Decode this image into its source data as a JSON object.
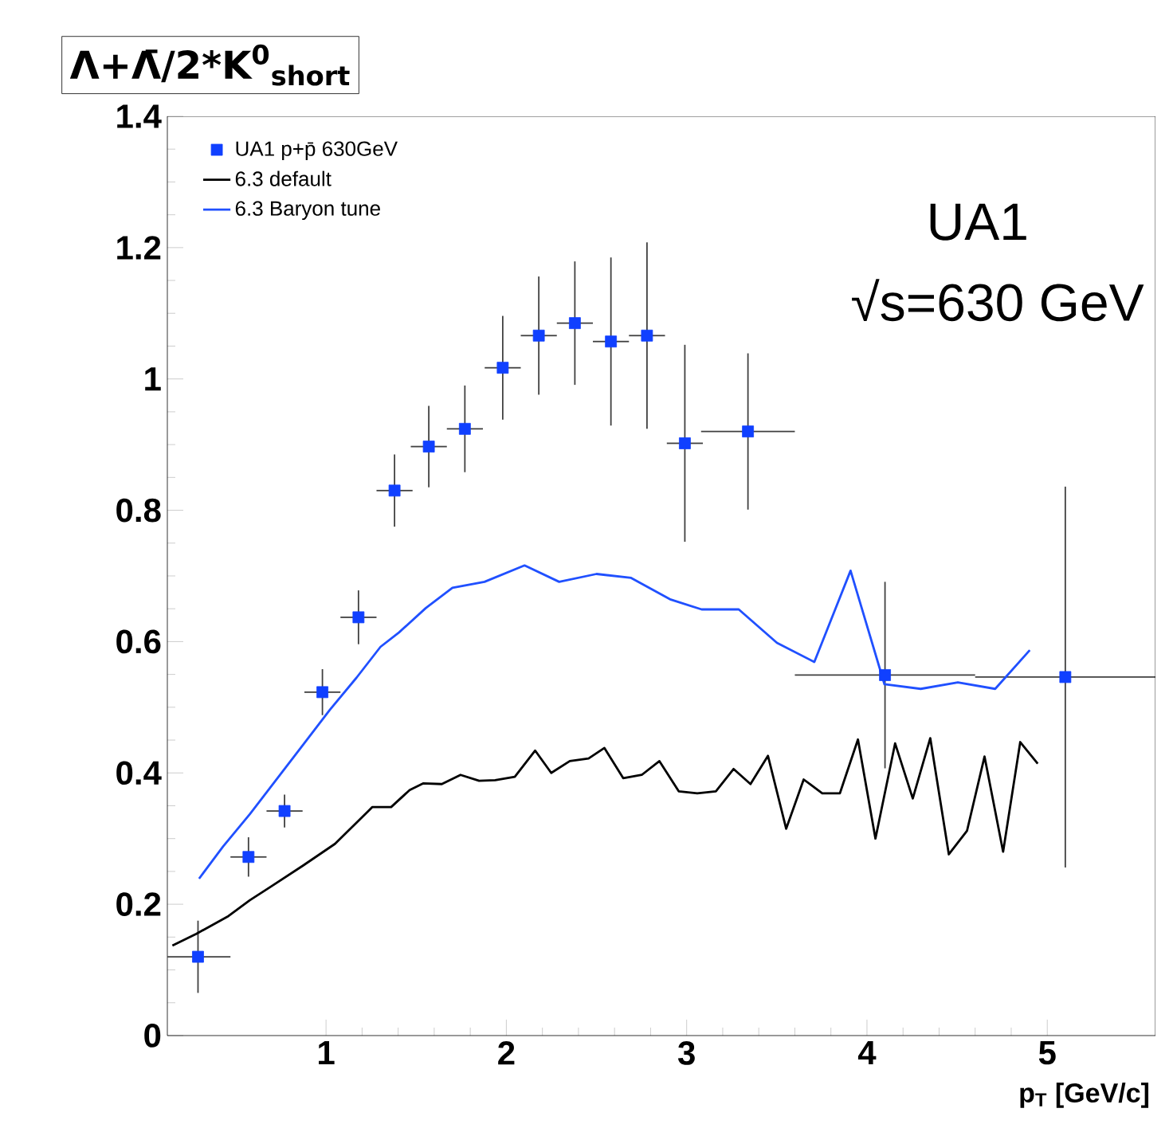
{
  "chart_data": {
    "type": "line",
    "ylabel": "Λ+Λ̄/2*K$^{0}$$_{short}$",
    "xlabel": "p$_{T}$ [GeV/c]",
    "annotations": [
      "UA1",
      "√s=630 GeV"
    ],
    "xlim": [
      0.12,
      5.6
    ],
    "xticks": [
      1,
      2,
      3,
      4,
      5
    ],
    "ylim": [
      0,
      1.4
    ],
    "yticks": [
      0,
      0.2,
      0.4,
      0.6,
      0.8,
      1,
      1.2,
      1.4
    ],
    "grid": false,
    "legend": "top left",
    "series": [
      {
        "name": "UA1 p+p̄ 630GeV",
        "type": "scatter",
        "marker": "square",
        "color": "#1040ff",
        "x": [
          0.29,
          0.57,
          0.77,
          0.98,
          1.18,
          1.38,
          1.57,
          1.77,
          1.98,
          2.18,
          2.38,
          2.58,
          2.78,
          2.99,
          3.34,
          4.1,
          5.1
        ],
        "values": [
          0.12,
          0.272,
          0.342,
          0.523,
          0.637,
          0.83,
          0.897,
          0.924,
          1.017,
          1.066,
          1.085,
          1.057,
          1.066,
          0.902,
          0.92,
          0.549,
          0.546
        ],
        "errors": [
          0.055,
          0.03,
          0.025,
          0.035,
          0.041,
          0.055,
          0.062,
          0.066,
          0.079,
          0.09,
          0.094,
          0.128,
          0.142,
          0.15,
          0.119,
          0.142,
          0.29
        ],
        "xerrors": [
          0.18,
          0.1,
          0.1,
          0.1,
          0.1,
          0.1,
          0.1,
          0.1,
          0.1,
          0.1,
          0.1,
          0.1,
          0.1,
          0.1,
          0.26,
          0.5,
          0.5
        ]
      },
      {
        "name": "6.3 default",
        "color": "#000000",
        "x": [
          0.148,
          0.281,
          0.459,
          0.577,
          0.695,
          0.873,
          1.05,
          1.257,
          1.361,
          1.464,
          1.538,
          1.642,
          1.746,
          1.849,
          1.938,
          2.047,
          2.16,
          2.249,
          2.352,
          2.456,
          2.544,
          2.648,
          2.751,
          2.849,
          2.956,
          3.059,
          3.162,
          3.26,
          3.354,
          3.451,
          3.552,
          3.649,
          3.752,
          3.85,
          3.95,
          4.047,
          4.156,
          4.254,
          4.351,
          4.454,
          4.555,
          4.652,
          4.755,
          4.85,
          4.947
        ],
        "values": [
          0.137,
          0.155,
          0.182,
          0.206,
          0.227,
          0.259,
          0.292,
          0.348,
          0.348,
          0.374,
          0.384,
          0.383,
          0.397,
          0.388,
          0.389,
          0.394,
          0.434,
          0.4,
          0.418,
          0.422,
          0.438,
          0.392,
          0.397,
          0.418,
          0.372,
          0.369,
          0.372,
          0.406,
          0.383,
          0.426,
          0.315,
          0.39,
          0.369,
          0.369,
          0.451,
          0.3,
          0.445,
          0.361,
          0.453,
          0.276,
          0.312,
          0.425,
          0.28,
          0.447,
          0.414
        ]
      },
      {
        "name": "6.3 Baryon tune",
        "color": "#2050ff",
        "x": [
          0.296,
          0.429,
          0.577,
          0.725,
          0.873,
          1.021,
          1.169,
          1.302,
          1.405,
          1.553,
          1.701,
          1.879,
          2.101,
          2.293,
          2.5,
          2.692,
          2.912,
          3.083,
          3.289,
          3.501,
          3.708,
          3.909,
          4.097,
          4.298,
          4.504,
          4.711,
          4.903
        ],
        "values": [
          0.239,
          0.288,
          0.337,
          0.39,
          0.443,
          0.496,
          0.545,
          0.592,
          0.614,
          0.651,
          0.682,
          0.691,
          0.716,
          0.691,
          0.703,
          0.697,
          0.664,
          0.649,
          0.649,
          0.598,
          0.569,
          0.708,
          0.535,
          0.528,
          0.538,
          0.528,
          0.587
        ]
      }
    ]
  }
}
